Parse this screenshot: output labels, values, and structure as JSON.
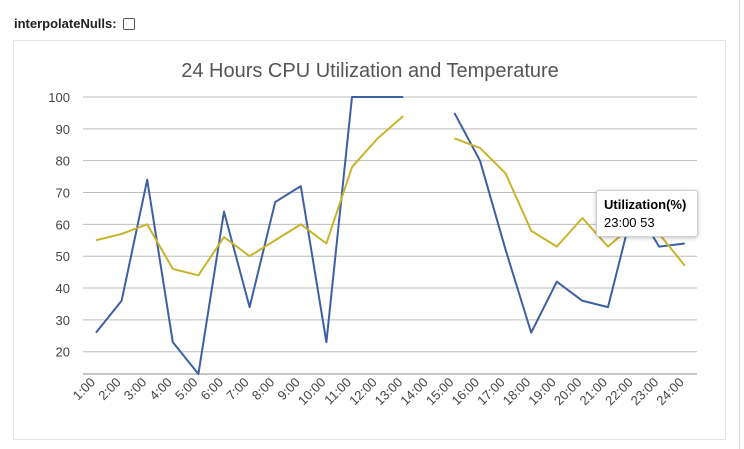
{
  "controls": {
    "interpolate_label": "interpolateNulls:",
    "interpolate_checked": false
  },
  "colors": {
    "utilization": "#3d5fa3",
    "temperature": "#c7b42c",
    "grid": "#bdbdbd",
    "axis_text": "#444444",
    "title": "#555555"
  },
  "chart_data": {
    "type": "line",
    "title": "24 Hours CPU Utilization and Temperature",
    "categories": [
      "1:00",
      "2:00",
      "3:00",
      "4:00",
      "5:00",
      "6:00",
      "7:00",
      "8:00",
      "9:00",
      "10:00",
      "11:00",
      "12:00",
      "13:00",
      "14:00",
      "15:00",
      "16:00",
      "17:00",
      "18:00",
      "19:00",
      "20:00",
      "21:00",
      "22:00",
      "23:00",
      "24:00"
    ],
    "ylim": [
      13,
      100
    ],
    "yticks": [
      20,
      30,
      40,
      50,
      60,
      70,
      80,
      90,
      100
    ],
    "grid": true,
    "legend": "none",
    "series": [
      {
        "name": "Utilization(%)",
        "color": "#3d5fa3",
        "values": [
          26,
          36,
          74,
          23,
          13,
          64,
          34,
          67,
          72,
          23,
          100,
          100,
          100,
          null,
          95,
          80,
          52,
          26,
          42,
          36,
          34,
          66,
          53,
          54
        ]
      },
      {
        "color": "#c7b42c",
        "values": [
          55,
          57,
          60,
          46,
          44,
          56,
          50,
          55,
          60,
          54,
          78,
          87,
          94,
          null,
          87,
          84,
          76,
          58,
          53,
          62,
          53,
          60,
          57,
          47
        ]
      }
    ]
  },
  "tooltip": {
    "title": "Utilization(%)",
    "text": "23:00 53"
  }
}
